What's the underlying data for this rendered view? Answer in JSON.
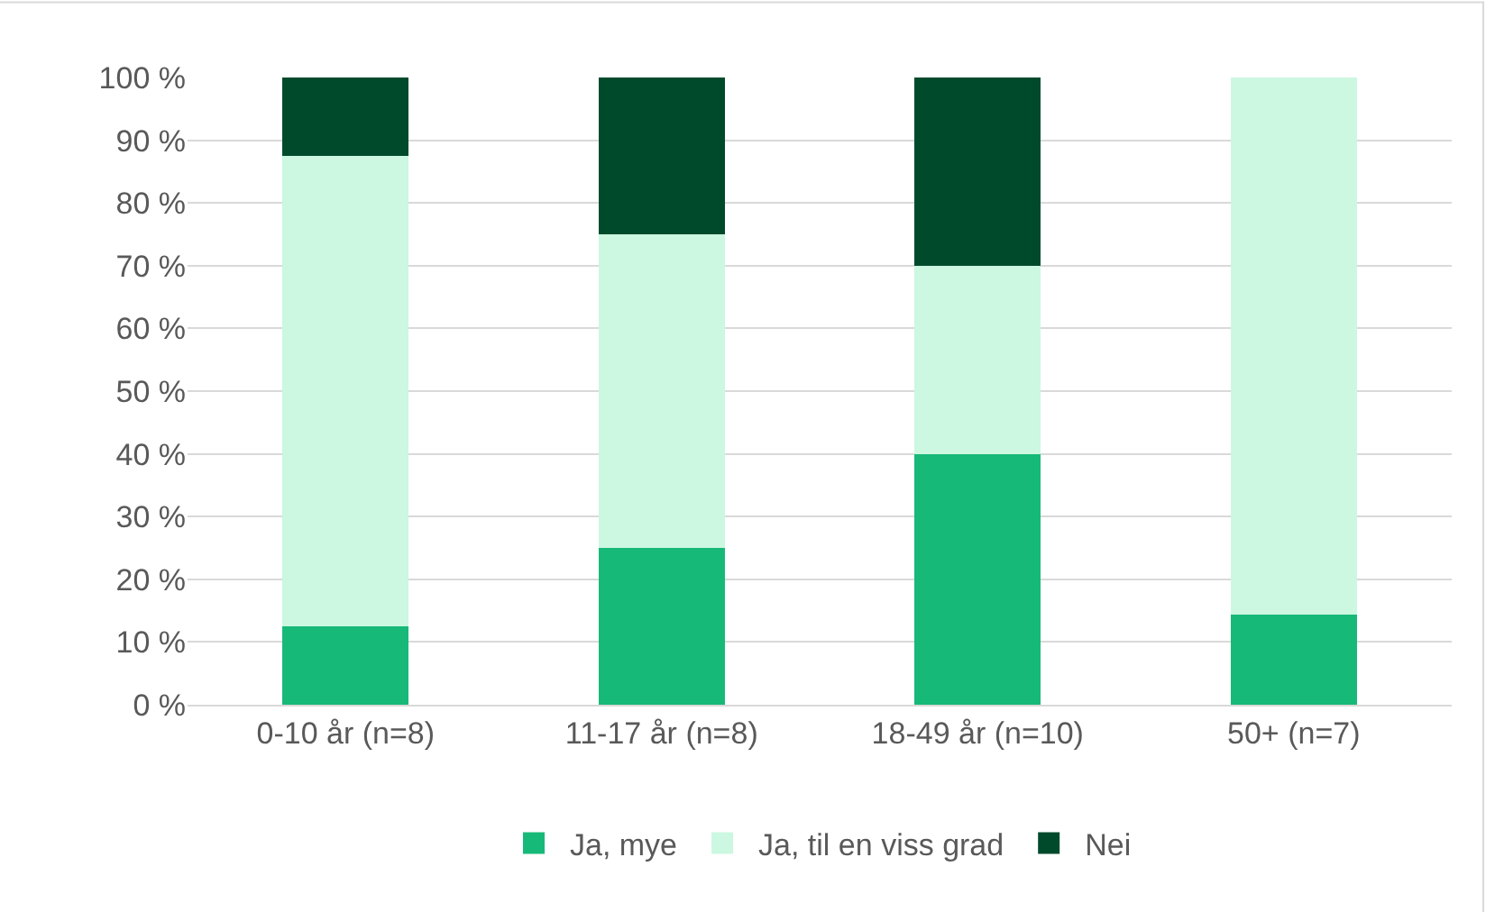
{
  "chart_data": {
    "type": "bar",
    "stacked": true,
    "categories": [
      "0-10 år (n=8)",
      "11-17 år (n=8)",
      "18-49 år (n=10)",
      "50+ (n=7)"
    ],
    "series": [
      {
        "name": "Ja, mye",
        "color": "#17b978",
        "values": [
          12.5,
          25,
          40,
          14.3
        ]
      },
      {
        "name": "Ja, til en viss grad",
        "color": "#ccf7e1",
        "values": [
          75,
          50,
          30,
          85.7
        ]
      },
      {
        "name": "Nei",
        "color": "#004a2c",
        "values": [
          12.5,
          25,
          30,
          0
        ]
      }
    ],
    "ylim": [
      0,
      100
    ],
    "yticks": [
      {
        "value": 0,
        "label": "0 %"
      },
      {
        "value": 10,
        "label": "10 %"
      },
      {
        "value": 20,
        "label": "20 %"
      },
      {
        "value": 30,
        "label": "30 %"
      },
      {
        "value": 40,
        "label": "40 %"
      },
      {
        "value": 50,
        "label": "50 %"
      },
      {
        "value": 60,
        "label": "60 %"
      },
      {
        "value": 70,
        "label": "70 %"
      },
      {
        "value": 80,
        "label": "80 %"
      },
      {
        "value": 90,
        "label": "90 %"
      },
      {
        "value": 100,
        "label": "100 %"
      }
    ],
    "grid": "y",
    "legend": "bottom"
  }
}
